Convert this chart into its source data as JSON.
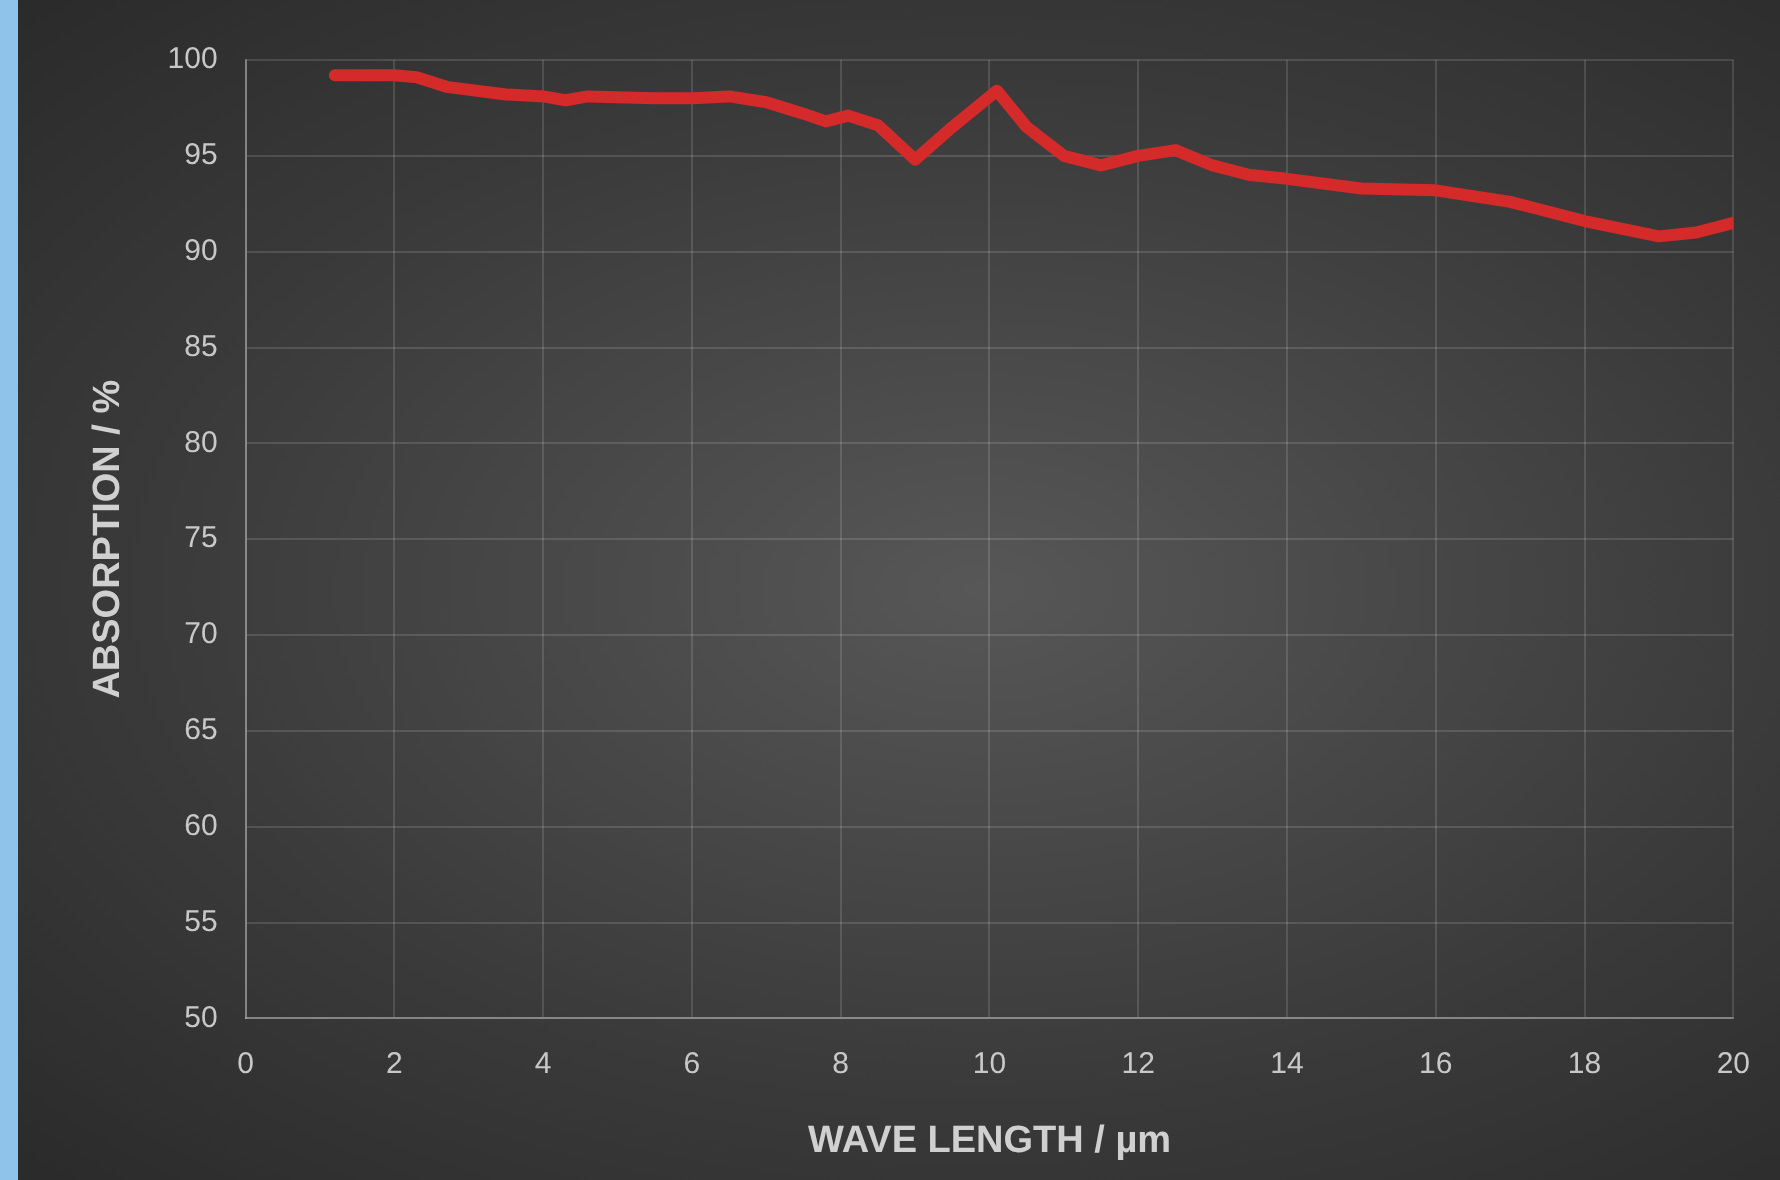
{
  "chart_data": {
    "type": "line",
    "xlabel": "WAVE LENGTH / µm",
    "ylabel": "ABSORPTION / %",
    "x": [
      1.2,
      2,
      2.3,
      2.7,
      3.5,
      4,
      4.3,
      4.6,
      5.5,
      6,
      6.5,
      7,
      7.5,
      7.8,
      8.1,
      8.5,
      9,
      9.5,
      10.1,
      10.5,
      11,
      11.5,
      12,
      12.5,
      13,
      13.5,
      14,
      15,
      16,
      17,
      18,
      19,
      19.5,
      20
    ],
    "series": [
      {
        "color": "#d42a2a",
        "values": [
          99.2,
          99.2,
          99.1,
          98.6,
          98.2,
          98.1,
          97.9,
          98.1,
          98.0,
          98.0,
          98.1,
          97.8,
          97.2,
          96.8,
          97.1,
          96.6,
          94.8,
          96.5,
          98.4,
          96.5,
          95.0,
          94.5,
          95.0,
          95.3,
          94.5,
          94.0,
          93.8,
          93.3,
          93.2,
          92.6,
          91.6,
          90.8,
          91.0,
          91.5
        ]
      }
    ],
    "xlim": [
      0,
      20
    ],
    "xticks": [
      0,
      2,
      4,
      6,
      8,
      10,
      12,
      14,
      16,
      18,
      20
    ],
    "ylim": [
      50,
      100
    ],
    "yticks": [
      50,
      55,
      60,
      65,
      70,
      75,
      80,
      85,
      90,
      95,
      100
    ],
    "grid": true,
    "legend": false,
    "marker": "none",
    "line_style": "solid"
  }
}
